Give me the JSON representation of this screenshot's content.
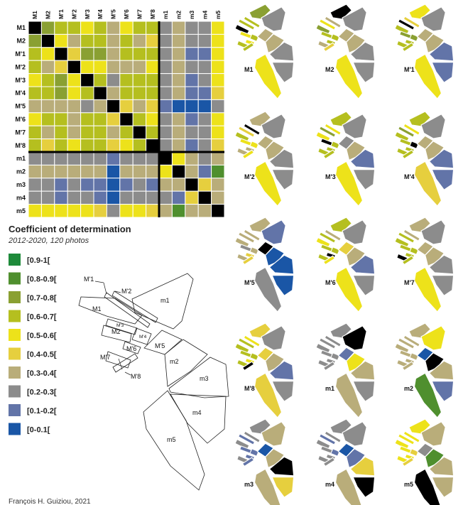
{
  "chart_data": {
    "type": "heatmap",
    "title": "Coefficient of determination",
    "subtitle": "2012-2020, 120 photos",
    "zones": [
      "M1",
      "M2",
      "M'1",
      "M'2",
      "M'3",
      "M'4",
      "M'5",
      "M'6",
      "M'7",
      "M'8",
      "m1",
      "m2",
      "m3",
      "m4",
      "m5"
    ],
    "legend": {
      "bins": [
        "[0.9-1[",
        "[0.8-0.9[",
        "[0.7-0.8[",
        "[0.6-0.7[",
        "[0.5-0.6[",
        "[0.4-0.5[",
        "[0.3-0.4[",
        "[0.2-0.3[",
        "[0.1-0.2[",
        "[0-0.1["
      ],
      "colors": [
        "#1e8a3a",
        "#4f8f2e",
        "#8aa032",
        "#b5bf1f",
        "#ede21a",
        "#e6cf3e",
        "#b9ad7a",
        "#8c8c8c",
        "#6274a8",
        "#1a56a6"
      ],
      "diagonal_color": "#000000"
    },
    "matrix_bins": [
      [
        -1,
        2,
        3,
        3,
        4,
        3,
        6,
        4,
        3,
        3,
        7,
        6,
        7,
        7,
        4
      ],
      [
        2,
        -1,
        4,
        6,
        3,
        3,
        6,
        3,
        6,
        5,
        7,
        6,
        7,
        7,
        4
      ],
      [
        3,
        4,
        -1,
        5,
        2,
        2,
        6,
        3,
        3,
        3,
        7,
        6,
        8,
        8,
        4
      ],
      [
        3,
        6,
        5,
        -1,
        4,
        4,
        6,
        6,
        6,
        4,
        7,
        6,
        7,
        7,
        4
      ],
      [
        4,
        3,
        2,
        4,
        -1,
        3,
        7,
        3,
        3,
        3,
        7,
        6,
        8,
        7,
        4
      ],
      [
        3,
        3,
        2,
        4,
        3,
        -1,
        6,
        3,
        3,
        3,
        7,
        6,
        8,
        8,
        5
      ],
      [
        6,
        6,
        6,
        6,
        7,
        6,
        -1,
        5,
        6,
        5,
        8,
        9,
        9,
        9,
        7
      ],
      [
        4,
        3,
        3,
        6,
        3,
        3,
        5,
        -1,
        3,
        4,
        7,
        6,
        8,
        7,
        4
      ],
      [
        3,
        6,
        3,
        6,
        3,
        3,
        6,
        3,
        -1,
        3,
        7,
        6,
        7,
        7,
        4
      ],
      [
        3,
        5,
        3,
        4,
        3,
        3,
        5,
        4,
        3,
        -1,
        7,
        6,
        8,
        7,
        5
      ],
      [
        7,
        7,
        7,
        7,
        7,
        7,
        8,
        7,
        7,
        7,
        -1,
        4,
        6,
        7,
        6
      ],
      [
        6,
        6,
        6,
        6,
        6,
        6,
        9,
        6,
        6,
        6,
        4,
        -1,
        6,
        8,
        1
      ],
      [
        7,
        7,
        8,
        7,
        8,
        8,
        9,
        8,
        7,
        8,
        6,
        6,
        -1,
        5,
        6
      ],
      [
        7,
        7,
        8,
        7,
        7,
        8,
        9,
        7,
        7,
        7,
        7,
        8,
        5,
        -1,
        6
      ],
      [
        4,
        4,
        4,
        4,
        4,
        5,
        7,
        4,
        4,
        5,
        6,
        1,
        6,
        6,
        -1
      ]
    ]
  },
  "map": {
    "labels": [
      "M'1",
      "M'2",
      "M1",
      "M'3",
      "M2",
      "M'4",
      "M'6",
      "M'5",
      "M'7",
      "M'8",
      "m1",
      "m2",
      "m3",
      "m4",
      "m5"
    ]
  },
  "credit": "François H. Guiziou, 2021"
}
